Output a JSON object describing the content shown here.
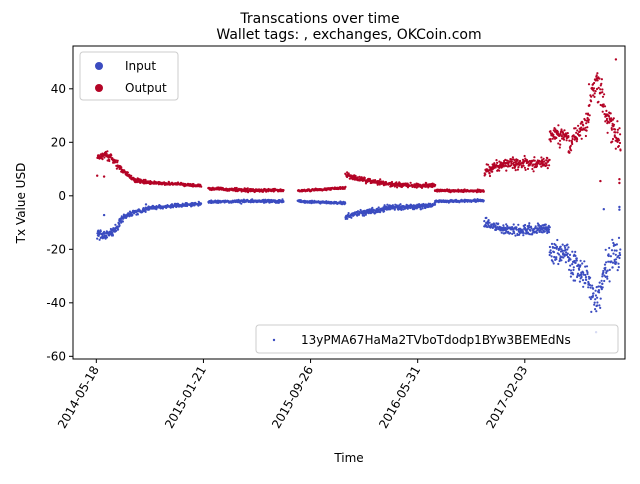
{
  "chart_data": {
    "type": "scatter",
    "title": "Transcations over time",
    "subtitle": "Wallet tags: , exchanges, OKCoin.com",
    "xlabel": "Time",
    "ylabel": "Tx Value USD",
    "x_range": [
      "2014-03-25",
      "2017-09-23"
    ],
    "ylim": [
      -61,
      56
    ],
    "x_ticks": [
      "2014-05-18",
      "2015-01-21",
      "2015-09-26",
      "2016-05-31",
      "2017-02-03"
    ],
    "y_ticks": [
      -60,
      -40,
      -20,
      0,
      20,
      40
    ],
    "grid": false,
    "legend_top": {
      "position": "upper-left",
      "entries": [
        {
          "label": "Input",
          "color": "#3b4cc0"
        },
        {
          "label": "Output",
          "color": "#b40426"
        }
      ]
    },
    "legend_bottom": {
      "position": "lower-right",
      "entries": [
        {
          "label": "13yPMA67HaMa2TVboTdodp1BYw3BEMEdNs",
          "color": "#3b4cc0"
        }
      ]
    },
    "series": [
      {
        "name": "Output",
        "color": "#b40426",
        "segments": [
          {
            "start": "2014-05-20",
            "end": "2014-07-10",
            "knots": [
              [
                0,
                14
              ],
              [
                0.4,
                15.5
              ],
              [
                1,
                11
              ]
            ],
            "spread": 0.9
          },
          {
            "start": "2014-07-10",
            "end": "2014-09-15",
            "knots": [
              [
                0,
                10.5
              ],
              [
                0.5,
                6
              ],
              [
                1,
                5
              ]
            ],
            "spread": 0.5
          },
          {
            "start": "2014-09-15",
            "end": "2015-01-15",
            "knots": [
              [
                0,
                5
              ],
              [
                1,
                3.8
              ]
            ],
            "spread": 0.35
          },
          {
            "start": "2015-02-01",
            "end": "2015-07-25",
            "knots": [
              [
                0,
                2.8
              ],
              [
                0.5,
                2.1
              ],
              [
                1,
                2
              ]
            ],
            "spread": 0.4
          },
          {
            "start": "2015-08-27",
            "end": "2015-12-15",
            "knots": [
              [
                0,
                1.8
              ],
              [
                1,
                3
              ]
            ],
            "spread": 0.3
          },
          {
            "start": "2015-12-15",
            "end": "2016-03-15",
            "knots": [
              [
                0,
                8
              ],
              [
                0.3,
                6.5
              ],
              [
                1,
                4.5
              ]
            ],
            "spread": 0.7
          },
          {
            "start": "2016-03-15",
            "end": "2016-07-10",
            "knots": [
              [
                0,
                4.5
              ],
              [
                0.6,
                3.8
              ],
              [
                1,
                4
              ]
            ],
            "spread": 0.6
          },
          {
            "start": "2016-07-10",
            "end": "2016-10-30",
            "knots": [
              [
                0,
                2
              ],
              [
                1,
                1.8
              ]
            ],
            "spread": 0.3
          },
          {
            "start": "2016-11-01",
            "end": "2017-04-01",
            "knots": [
              [
                0,
                9
              ],
              [
                0.3,
                12
              ],
              [
                0.6,
                12.5
              ],
              [
                1,
                12
              ]
            ],
            "spread": 1.6
          },
          {
            "start": "2017-04-01",
            "end": "2017-05-15",
            "knots": [
              [
                0,
                23
              ],
              [
                1,
                22
              ]
            ],
            "spread": 2.2
          },
          {
            "start": "2017-05-15",
            "end": "2017-07-01",
            "knots": [
              [
                0,
                18
              ],
              [
                0.5,
                24
              ],
              [
                1,
                28
              ]
            ],
            "spread": 2.5
          },
          {
            "start": "2017-07-01",
            "end": "2017-08-01",
            "knots": [
              [
                0,
                36
              ],
              [
                0.5,
                42
              ],
              [
                1,
                38
              ]
            ],
            "spread": 4.5
          },
          {
            "start": "2017-08-01",
            "end": "2017-09-12",
            "knots": [
              [
                0,
                34
              ],
              [
                0.5,
                26
              ],
              [
                1,
                20
              ]
            ],
            "spread": 4.5
          }
        ],
        "outliers": [
          [
            "2014-05-20",
            7.5
          ],
          [
            "2014-06-05",
            7.2
          ],
          [
            "2017-07-28",
            5.5
          ],
          [
            "2017-09-10",
            6.2
          ],
          [
            "2017-09-10",
            4.8
          ],
          [
            "2017-09-02",
            51
          ]
        ]
      },
      {
        "name": "Input",
        "color": "#3b4cc0",
        "segments": [
          {
            "start": "2014-05-20",
            "end": "2014-07-10",
            "knots": [
              [
                0,
                -14
              ],
              [
                0.4,
                -15
              ],
              [
                1,
                -11
              ]
            ],
            "spread": 1.2
          },
          {
            "start": "2014-07-10",
            "end": "2014-09-15",
            "knots": [
              [
                0,
                -9
              ],
              [
                0.5,
                -6
              ],
              [
                1,
                -5
              ]
            ],
            "spread": 0.8
          },
          {
            "start": "2014-09-15",
            "end": "2015-01-15",
            "knots": [
              [
                0,
                -4.5
              ],
              [
                1,
                -3
              ]
            ],
            "spread": 0.5
          },
          {
            "start": "2015-02-01",
            "end": "2015-07-25",
            "knots": [
              [
                0,
                -2.2
              ],
              [
                0.5,
                -2
              ],
              [
                1,
                -2
              ]
            ],
            "spread": 0.4
          },
          {
            "start": "2015-08-27",
            "end": "2015-12-15",
            "knots": [
              [
                0,
                -2
              ],
              [
                1,
                -2.8
              ]
            ],
            "spread": 0.3
          },
          {
            "start": "2015-12-15",
            "end": "2016-03-15",
            "knots": [
              [
                0,
                -8
              ],
              [
                0.3,
                -6.5
              ],
              [
                1,
                -5
              ]
            ],
            "spread": 0.7
          },
          {
            "start": "2016-03-15",
            "end": "2016-07-10",
            "knots": [
              [
                0,
                -4.5
              ],
              [
                0.6,
                -4
              ],
              [
                1,
                -3.5
              ]
            ],
            "spread": 0.7
          },
          {
            "start": "2016-07-10",
            "end": "2016-10-30",
            "knots": [
              [
                0,
                -2
              ],
              [
                1,
                -1.8
              ]
            ],
            "spread": 0.3
          },
          {
            "start": "2016-11-01",
            "end": "2017-04-01",
            "knots": [
              [
                0,
                -10
              ],
              [
                0.3,
                -12.5
              ],
              [
                0.6,
                -13
              ],
              [
                1,
                -12
              ]
            ],
            "spread": 1.4
          },
          {
            "start": "2017-04-01",
            "end": "2017-05-15",
            "knots": [
              [
                0,
                -22
              ],
              [
                1,
                -20
              ]
            ],
            "spread": 3
          },
          {
            "start": "2017-05-15",
            "end": "2017-07-01",
            "knots": [
              [
                0,
                -25
              ],
              [
                0.5,
                -27
              ],
              [
                1,
                -32
              ]
            ],
            "spread": 3.5
          },
          {
            "start": "2017-07-01",
            "end": "2017-08-01",
            "knots": [
              [
                0,
                -34
              ],
              [
                0.5,
                -40
              ],
              [
                1,
                -33
              ]
            ],
            "spread": 4.5
          },
          {
            "start": "2017-08-01",
            "end": "2017-09-12",
            "knots": [
              [
                0,
                -30
              ],
              [
                0.5,
                -24
              ],
              [
                1,
                -21
              ]
            ],
            "spread": 4.5
          }
        ],
        "outliers": [
          [
            "2014-06-05",
            -7.2
          ],
          [
            "2014-09-10",
            -3.2
          ],
          [
            "2017-08-05",
            -5
          ],
          [
            "2017-09-10",
            -5.2
          ],
          [
            "2017-09-10",
            -4.2
          ],
          [
            "2017-07-18",
            -51
          ]
        ]
      }
    ]
  }
}
